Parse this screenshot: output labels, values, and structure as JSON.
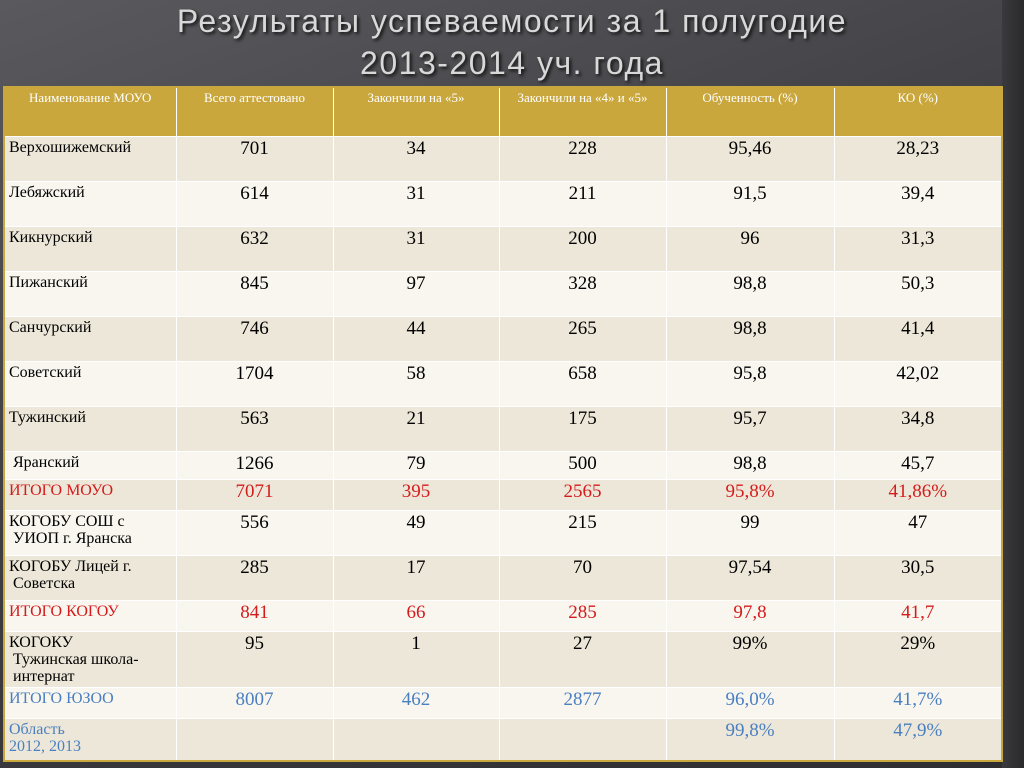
{
  "title": {
    "line1": "Результаты успеваемости за 1 полугодие",
    "line2": "2013-2014 уч. года"
  },
  "table": {
    "headers": [
      "Наименование МОУО",
      "Всего аттестовано",
      "Закончили на «5»",
      "Закончили на «4» и «5»",
      "Обученность (%)",
      "КО (%)"
    ],
    "rows": [
      {
        "name": "Верхошижемский",
        "total": "701",
        "five": "34",
        "four_five": "228",
        "learned": "95,46",
        "ko": "28,23"
      },
      {
        "name": "Лебяжский",
        "total": "614",
        "five": "31",
        "four_five": "211",
        "learned": "91,5",
        "ko": "39,4"
      },
      {
        "name": "Кикнурский",
        "total": "632",
        "five": "31",
        "four_five": "200",
        "learned": "96",
        "ko": "31,3"
      },
      {
        "name": "Пижанский",
        "total": "845",
        "five": "97",
        "four_five": "328",
        "learned": "98,8",
        "ko": "50,3"
      },
      {
        "name": "Санчурский",
        "total": "746",
        "five": "44",
        "four_five": "265",
        "learned": "98,8",
        "ko": "41,4"
      },
      {
        "name": "Советский",
        "total": "1704",
        "five": "58",
        "four_five": "658",
        "learned": "95,8",
        "ko": "42,02"
      },
      {
        "name": "Тужинский",
        "total": "563",
        "five": "21",
        "four_five": "175",
        "learned": "95,7",
        "ko": "34,8"
      },
      {
        "name": "Яранский",
        "total": "1266",
        "five": "79",
        "four_five": "500",
        "learned": "98,8",
        "ko": "45,7"
      },
      {
        "name": "ИТОГО МОУО",
        "total": "7071",
        "five": "395",
        "four_five": "2565",
        "learned": "95,8%",
        "ko": "41,86%"
      },
      {
        "name_l1": "КОГОБУ СОШ с",
        "name_l2": "УИОП г. Яранска",
        "total": "556",
        "five": "49",
        "four_five": "215",
        "learned": "99",
        "ko": "47"
      },
      {
        "name_l1": "КОГОБУ Лицей г.",
        "name_l2": "Советска",
        "total": "285",
        "five": "17",
        "four_five": "70",
        "learned": "97,54",
        "ko": "30,5"
      },
      {
        "name": "ИТОГО КОГОУ",
        "total": "841",
        "five": "66",
        "four_five": "285",
        "learned": "97,8",
        "ko": "41,7"
      },
      {
        "name_l1": "КОГОКУ",
        "name_l2": "Тужинская школа-",
        "name_l3": "интернат",
        "total": "95",
        "five": "1",
        "four_five": "27",
        "learned": "99%",
        "ko": "29%"
      },
      {
        "name": "ИТОГО ЮЗОО",
        "total": "8007",
        "five": "462",
        "four_five": "2877",
        "learned": "96,0%",
        "ko": "41,7%"
      },
      {
        "name_l1": "Область",
        "name_l2": "2012, 2013",
        "total": "",
        "five": "",
        "four_five": "",
        "learned": "99,8%",
        "ko": "47,9%"
      }
    ]
  },
  "colors": {
    "header_bg": "#c9a73d",
    "total_text": "#d41c1c",
    "region_text": "#4a7fc1",
    "row_odd": "#ece7d8",
    "row_even": "#f8f6ef"
  }
}
